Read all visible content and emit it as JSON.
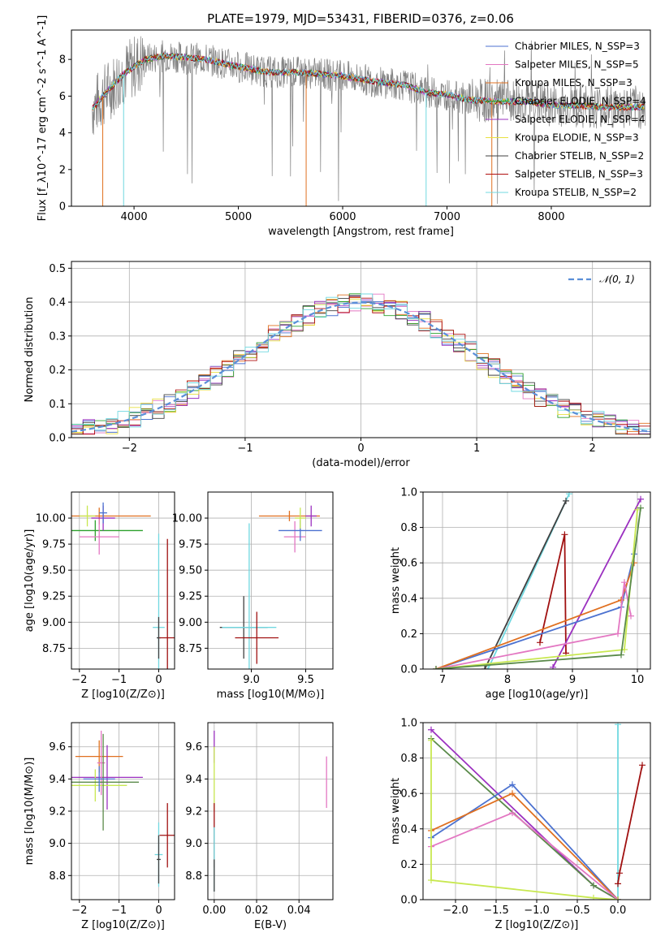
{
  "title": "PLATE=1979, MJD=53431, FIBERID=0376, z=0.06",
  "colors": {
    "grey": "#808080",
    "c0": "#4c72d0",
    "c1": "#e377c2",
    "c2": "#e07020",
    "c3": "#2ca02c",
    "c4": "#9b30c0",
    "c5": "#e8e040",
    "c6": "#404040",
    "c7": "#b01010",
    "c8": "#70d8e0",
    "green": "#5a8a4a",
    "lime": "#c8e850",
    "darkred": "#a01010"
  },
  "chart_data": [
    {
      "id": "spectrum",
      "type": "line",
      "xlabel": "wavelength [Angstrom, rest frame]",
      "ylabel": "Flux [f_λ10^-17 erg cm^-2 s^-1 A^-1]",
      "xlim": [
        3400,
        8950
      ],
      "ylim": [
        0,
        9.6
      ],
      "xticks": [
        "4000",
        "5000",
        "6000",
        "7000",
        "8000"
      ],
      "yticks": [
        "0",
        "2",
        "4",
        "6",
        "8"
      ],
      "legend_position": "top-right",
      "series": [
        {
          "name": "Chabrier MILES, N_SSP=3",
          "color_key": "c0"
        },
        {
          "name": "Salpeter MILES, N_SSP=5",
          "color_key": "c1"
        },
        {
          "name": "Kroupa MILES, N_SSP=3",
          "color_key": "c2"
        },
        {
          "name": "Chabrier ELODIE, N_SSP=4",
          "color_key": "c3"
        },
        {
          "name": "Salpeter ELODIE, N_SSP=4",
          "color_key": "c4"
        },
        {
          "name": "Kroupa ELODIE, N_SSP=3",
          "color_key": "c5"
        },
        {
          "name": "Chabrier STELIB, N_SSP=2",
          "color_key": "c6"
        },
        {
          "name": "Salpeter STELIB, N_SSP=3",
          "color_key": "c7"
        },
        {
          "name": "Kroupa STELIB, N_SSP=2",
          "color_key": "c8"
        }
      ],
      "continuum": {
        "x": [
          3600,
          3700,
          3800,
          3900,
          4000,
          4100,
          4300,
          4500,
          4700,
          5000,
          5300,
          5600,
          6000,
          6300,
          6600,
          6800,
          7000,
          7200,
          7500,
          7800,
          8000,
          8200,
          8500,
          8900
        ],
        "y": [
          5.3,
          6.0,
          6.6,
          7.2,
          7.6,
          8.0,
          8.2,
          8.1,
          8.0,
          7.6,
          7.3,
          7.3,
          7.1,
          6.8,
          6.6,
          6.2,
          6.1,
          5.8,
          5.7,
          5.7,
          5.5,
          5.5,
          5.4,
          5.4
        ]
      }
    },
    {
      "id": "residuals",
      "type": "line",
      "xlabel": "(data-model)/error",
      "ylabel": "Normed distribution",
      "xlim": [
        -2.5,
        2.5
      ],
      "ylim": [
        0,
        0.52
      ],
      "xticks": [
        "−2",
        "−1",
        "0",
        "1",
        "2"
      ],
      "yticks": [
        "0.0",
        "0.1",
        "0.2",
        "0.3",
        "0.4",
        "0.5"
      ],
      "reference_label": "𝒩(0, 1)",
      "legend_position": "top-right"
    },
    {
      "id": "age-vs-Z",
      "type": "scatter",
      "xlabel": "Z [log10(Z/Z⊙)]",
      "ylabel": "age  [log10(age/yr)]",
      "xlim": [
        -2.2,
        0.4
      ],
      "ylim": [
        8.55,
        10.25
      ],
      "xticks": [
        "−2",
        "−1",
        "0"
      ],
      "yticks": [
        "8.75",
        "9.00",
        "9.25",
        "9.50",
        "9.75",
        "10.00"
      ],
      "points": [
        {
          "x": -1.5,
          "y": 10.02,
          "xerr": 1.3,
          "yerr": 0.08,
          "color_key": "c2"
        },
        {
          "x": -1.6,
          "y": 9.88,
          "xerr": 1.2,
          "yerr": 0.1,
          "color_key": "c3"
        },
        {
          "x": -1.4,
          "y": 10.0,
          "xerr": 0.3,
          "yerr": 0.12,
          "color_key": "c4"
        },
        {
          "x": -1.5,
          "y": 9.82,
          "xerr": 0.5,
          "yerr": 0.17,
          "color_key": "c1"
        },
        {
          "x": -1.4,
          "y": 10.05,
          "xerr": 0.1,
          "yerr": 0.1,
          "color_key": "c0"
        },
        {
          "x": -1.8,
          "y": 10.02,
          "xerr": 0.2,
          "yerr": 0.1,
          "color_key": "lime"
        },
        {
          "x": 0.0,
          "y": 8.95,
          "xerr": 0.15,
          "yerr": 0.9,
          "color_key": "c8"
        },
        {
          "x": 0.0,
          "y": 8.85,
          "xerr": 0.05,
          "yerr": 0.2,
          "color_key": "c6"
        },
        {
          "x": 0.22,
          "y": 8.85,
          "xerr": 0.2,
          "yerr": 0.95,
          "color_key": "darkred"
        }
      ]
    },
    {
      "id": "age-vs-mass",
      "type": "scatter",
      "xlabel": "mass [log10(M/M⊙)]",
      "ylabel": "",
      "xlim": [
        8.6,
        9.75
      ],
      "ylim": [
        8.55,
        10.25
      ],
      "xticks": [
        "9.0",
        "9.5"
      ],
      "yticks": [
        "8.75",
        "9.00",
        "9.25",
        "9.50",
        "9.75",
        "10.00"
      ],
      "points": [
        {
          "x": 9.35,
          "y": 10.02,
          "xerr": 0.28,
          "yerr": 0.05,
          "color_key": "c2"
        },
        {
          "x": 9.55,
          "y": 10.02,
          "xerr": 0.05,
          "yerr": 0.1,
          "color_key": "c4"
        },
        {
          "x": 9.4,
          "y": 9.82,
          "xerr": 0.1,
          "yerr": 0.15,
          "color_key": "c1"
        },
        {
          "x": 9.45,
          "y": 9.88,
          "xerr": 0.2,
          "yerr": 0.1,
          "color_key": "c0"
        },
        {
          "x": 9.45,
          "y": 10.0,
          "xerr": 0.05,
          "yerr": 0.1,
          "color_key": "lime"
        },
        {
          "x": 8.93,
          "y": 8.95,
          "xerr": 0.22,
          "yerr": 0.3,
          "color_key": "c6"
        },
        {
          "x": 8.98,
          "y": 8.95,
          "xerr": 0.25,
          "yerr": 1.0,
          "color_key": "c8"
        },
        {
          "x": 9.05,
          "y": 8.85,
          "xerr": 0.2,
          "yerr": 0.25,
          "color_key": "darkred"
        }
      ]
    },
    {
      "id": "massweight-vs-age",
      "type": "line",
      "xlabel": "age  [log10(age/yr)]",
      "ylabel": "mass weight",
      "xlim": [
        6.7,
        10.2
      ],
      "ylim": [
        0,
        1
      ],
      "xticks": [
        "7",
        "8",
        "9",
        "10"
      ],
      "yticks": [
        "0.0",
        "0.2",
        "0.4",
        "0.6",
        "0.8",
        "1.0"
      ],
      "series": [
        {
          "color_key": "c8",
          "x": [
            7.7,
            8.95
          ],
          "y": [
            0.0,
            0.99
          ]
        },
        {
          "color_key": "c6",
          "x": [
            7.65,
            8.9
          ],
          "y": [
            0.0,
            0.95
          ]
        },
        {
          "color_key": "darkred",
          "x": [
            8.5,
            8.88,
            8.9
          ],
          "y": [
            0.15,
            0.76,
            0.09
          ]
        },
        {
          "color_key": "c4",
          "x": [
            8.7,
            10.05
          ],
          "y": [
            0.01,
            0.96
          ]
        },
        {
          "color_key": "c0",
          "x": [
            6.9,
            9.75,
            9.95
          ],
          "y": [
            0.0,
            0.35,
            0.65
          ]
        },
        {
          "color_key": "c2",
          "x": [
            6.9,
            9.75,
            9.95
          ],
          "y": [
            0.0,
            0.39,
            0.6
          ]
        },
        {
          "color_key": "c1",
          "x": [
            6.9,
            9.7,
            9.8,
            9.9
          ],
          "y": [
            0.0,
            0.2,
            0.49,
            0.3
          ]
        },
        {
          "color_key": "lime",
          "x": [
            6.9,
            9.8,
            10.0
          ],
          "y": [
            0.0,
            0.11,
            0.9
          ]
        },
        {
          "color_key": "green",
          "x": [
            6.9,
            9.75,
            10.05
          ],
          "y": [
            0.0,
            0.08,
            0.91
          ]
        }
      ]
    },
    {
      "id": "mass-vs-Z",
      "type": "scatter",
      "xlabel": "Z [log10(Z/Z⊙)]",
      "ylabel": "mass [log10(M/M⊙)]",
      "xlim": [
        -2.2,
        0.4
      ],
      "ylim": [
        8.65,
        9.75
      ],
      "xticks": [
        "−2",
        "−1",
        "0"
      ],
      "yticks": [
        "8.8",
        "9.0",
        "9.2",
        "9.4",
        "9.6"
      ],
      "points": [
        {
          "x": -1.5,
          "y": 9.54,
          "xerr": 0.6,
          "yerr": 0.1,
          "color_key": "c2"
        },
        {
          "x": -1.3,
          "y": 9.41,
          "xerr": 0.9,
          "yerr": 0.2,
          "color_key": "c4"
        },
        {
          "x": -1.45,
          "y": 9.5,
          "xerr": 0.1,
          "yerr": 0.2,
          "color_key": "c1"
        },
        {
          "x": -1.6,
          "y": 9.36,
          "xerr": 0.8,
          "yerr": 0.1,
          "color_key": "lime"
        },
        {
          "x": -1.4,
          "y": 9.38,
          "xerr": 0.9,
          "yerr": 0.3,
          "color_key": "green"
        },
        {
          "x": -1.5,
          "y": 9.4,
          "xerr": 0.4,
          "yerr": 0.08,
          "color_key": "c0"
        },
        {
          "x": 0.0,
          "y": 8.93,
          "xerr": 0.1,
          "yerr": 0.2,
          "color_key": "c8"
        },
        {
          "x": 0.0,
          "y": 8.9,
          "xerr": 0.05,
          "yerr": 0.15,
          "color_key": "c6"
        },
        {
          "x": 0.22,
          "y": 9.05,
          "xerr": 0.2,
          "yerr": 0.2,
          "color_key": "darkred"
        }
      ]
    },
    {
      "id": "mass-vs-EBV",
      "type": "scatter",
      "xlabel": "E(B-V)",
      "ylabel": "",
      "xlim": [
        -0.003,
        0.056
      ],
      "ylim": [
        8.65,
        9.75
      ],
      "xticks": [
        "0.00",
        "0.02",
        "0.04"
      ],
      "yticks": [
        "8.8",
        "9.0",
        "9.2",
        "9.4",
        "9.6"
      ],
      "points": [
        {
          "x": 0.0,
          "y": 9.6,
          "xerr": 0.0,
          "yerr": 0.1,
          "color_key": "c4"
        },
        {
          "x": 0.0,
          "y": 9.4,
          "xerr": 0.0,
          "yerr": 0.2,
          "color_key": "lime"
        },
        {
          "x": 0.0,
          "y": 9.05,
          "xerr": 0.0,
          "yerr": 0.2,
          "color_key": "darkred"
        },
        {
          "x": 0.0,
          "y": 8.9,
          "xerr": 0.0,
          "yerr": 0.2,
          "color_key": "c8"
        },
        {
          "x": 0.0,
          "y": 8.8,
          "xerr": 0.0,
          "yerr": 0.1,
          "color_key": "c6"
        },
        {
          "x": 0.053,
          "y": 9.38,
          "xerr": 0.0,
          "yerr": 0.16,
          "color_key": "c1"
        }
      ]
    },
    {
      "id": "massweight-vs-Z",
      "type": "line",
      "xlabel": "Z [log10(Z/Z⊙)]",
      "ylabel": "mass weight",
      "xlim": [
        -2.4,
        0.4
      ],
      "ylim": [
        0,
        1
      ],
      "xticks": [
        "−2.0",
        "−1.5",
        "−1.0",
        "−0.5",
        "0.0"
      ],
      "yticks": [
        "0.0",
        "0.2",
        "0.4",
        "0.6",
        "0.8",
        "1.0"
      ],
      "series": [
        {
          "color_key": "c8",
          "x": [
            0.0,
            0.0
          ],
          "y": [
            0.0,
            0.99
          ]
        },
        {
          "color_key": "darkred",
          "x": [
            0.0,
            0.02,
            0.3
          ],
          "y": [
            0.09,
            0.15,
            0.76
          ]
        },
        {
          "color_key": "c4",
          "x": [
            -2.3,
            -0.3,
            0.0
          ],
          "y": [
            0.96,
            0.08,
            0.0
          ]
        },
        {
          "color_key": "green",
          "x": [
            -2.3,
            -0.3,
            0.0
          ],
          "y": [
            0.91,
            0.08,
            0.0
          ]
        },
        {
          "color_key": "c0",
          "x": [
            -2.3,
            -1.3,
            0.0
          ],
          "y": [
            0.35,
            0.65,
            0.0
          ]
        },
        {
          "color_key": "c2",
          "x": [
            -2.3,
            -1.3,
            0.0
          ],
          "y": [
            0.39,
            0.6,
            0.0
          ]
        },
        {
          "color_key": "c1",
          "x": [
            -2.3,
            -1.3,
            0.0
          ],
          "y": [
            0.3,
            0.49,
            0.0
          ]
        },
        {
          "color_key": "lime",
          "x": [
            -2.3,
            -2.3,
            -0.3,
            0.0
          ],
          "y": [
            0.9,
            0.11,
            0.01,
            0.0
          ]
        }
      ]
    }
  ]
}
